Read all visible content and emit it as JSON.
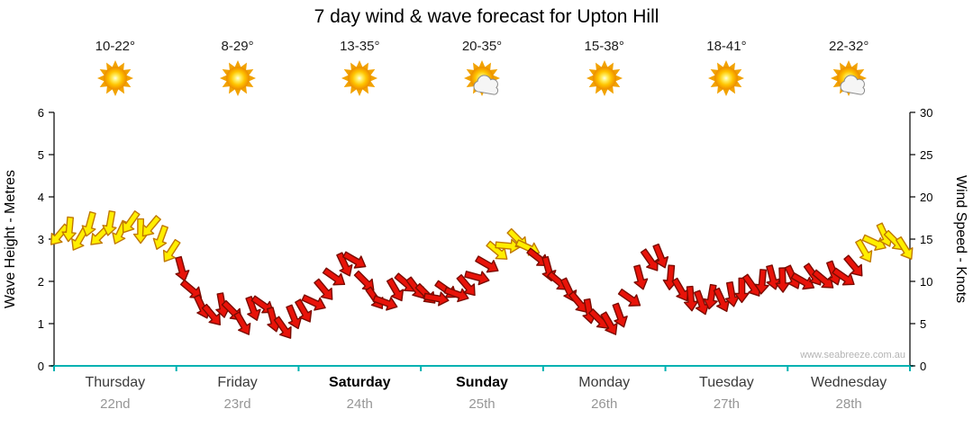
{
  "title": "7 day wind & wave forecast for Upton Hill",
  "watermark": "www.seabreeze.com.au",
  "axes": {
    "left_label": "Wave Height - Metres",
    "right_label": "Wind Speed - Knots",
    "left_ticks": [
      "0",
      "1",
      "2",
      "3",
      "4",
      "5",
      "6"
    ],
    "right_ticks": [
      "0",
      "5",
      "10",
      "15",
      "20",
      "25",
      "30"
    ]
  },
  "days": [
    {
      "name": "Thursday",
      "date": "22nd",
      "temp": "10-22°",
      "icon": "sun",
      "weekend": false
    },
    {
      "name": "Friday",
      "date": "23rd",
      "temp": "8-29°",
      "icon": "sun",
      "weekend": false
    },
    {
      "name": "Saturday",
      "date": "24th",
      "temp": "13-35°",
      "icon": "sun",
      "weekend": true
    },
    {
      "name": "Sunday",
      "date": "25th",
      "temp": "20-35°",
      "icon": "sun-cloud",
      "weekend": true
    },
    {
      "name": "Monday",
      "date": "26th",
      "temp": "15-38°",
      "icon": "sun",
      "weekend": false
    },
    {
      "name": "Tuesday",
      "date": "27th",
      "temp": "18-41°",
      "icon": "sun",
      "weekend": false
    },
    {
      "name": "Wednesday",
      "date": "28th",
      "temp": "22-32°",
      "icon": "sun-cloud",
      "weekend": false
    }
  ],
  "chart_data": {
    "type": "line",
    "subtype": "wind-direction-arrow-trace",
    "title": "7 day wind & wave forecast for Upton Hill",
    "categories": [
      "Thursday 22nd",
      "Friday 23rd",
      "Saturday 24th",
      "Sunday 25th",
      "Monday 26th",
      "Tuesday 27th",
      "Wednesday 28th"
    ],
    "points_per_day": 12,
    "x_unit": "2-hour steps across 7 days",
    "ylabel_left": "Wave Height - Metres",
    "ylim_left": [
      0,
      6
    ],
    "ylabel_right": "Wind Speed - Knots",
    "ylim_right": [
      0,
      30
    ],
    "grid": false,
    "legend": "none",
    "color_rule": "arrow yellow when wind >= 13.5 kn, red when below",
    "arrow_colors": {
      "strong": "#ffee00",
      "strong_outline": "#c07800",
      "light": "#e81309",
      "light_outline": "#7a0b00"
    },
    "axis_color_x": "#00b2b2",
    "wind_speed_knots": [
      15.5,
      16.2,
      15.0,
      16.8,
      15.4,
      16.9,
      15.8,
      17.0,
      16.0,
      16.5,
      15.2,
      13.6,
      11.5,
      9.0,
      7.0,
      6.0,
      7.2,
      6.5,
      5.0,
      6.8,
      7.2,
      5.5,
      4.5,
      5.8,
      6.5,
      7.5,
      9.0,
      10.5,
      12.0,
      12.5,
      10.0,
      8.0,
      7.5,
      9.0,
      9.8,
      9.2,
      8.5,
      8.0,
      9.0,
      8.5,
      9.5,
      10.5,
      12.0,
      13.6,
      14.2,
      15.0,
      14.0,
      12.8,
      11.5,
      10.0,
      9.0,
      7.5,
      6.5,
      5.5,
      5.0,
      6.0,
      8.0,
      10.5,
      12.5,
      13.0,
      10.5,
      9.0,
      8.0,
      7.5,
      8.2,
      7.8,
      8.5,
      9.0,
      9.5,
      10.0,
      10.5,
      10.2,
      10.5,
      10.0,
      10.8,
      10.2,
      11.0,
      10.5,
      11.8,
      13.6,
      14.6,
      15.5,
      14.8,
      13.9
    ],
    "wind_dir_deg": [
      220,
      185,
      210,
      195,
      225,
      190,
      205,
      215,
      180,
      220,
      200,
      213,
      165,
      130,
      155,
      140,
      170,
      135,
      150,
      160,
      125,
      165,
      145,
      158,
      150,
      115,
      140,
      125,
      155,
      120,
      135,
      145,
      110,
      150,
      130,
      143,
      135,
      100,
      125,
      110,
      140,
      105,
      120,
      130,
      95,
      135,
      115,
      128,
      165,
      130,
      155,
      140,
      170,
      135,
      150,
      160,
      125,
      165,
      145,
      158,
      185,
      150,
      175,
      160,
      190,
      155,
      170,
      180,
      145,
      185,
      165,
      178,
      155,
      120,
      145,
      130,
      160,
      125,
      140,
      150,
      115,
      155,
      135,
      148
    ]
  }
}
